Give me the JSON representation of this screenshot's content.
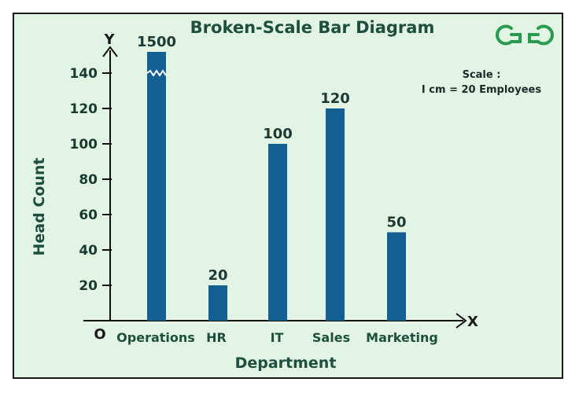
{
  "chart_data": {
    "type": "bar",
    "title": "Broken-Scale Bar Diagram",
    "xlabel": "Department",
    "ylabel": "Head Count",
    "categories": [
      "Operations",
      "HR",
      "IT",
      "Sales",
      "Marketing"
    ],
    "values": [
      1500,
      20,
      100,
      120,
      50
    ],
    "value_labels": [
      "1500",
      "20",
      "100",
      "120",
      "50"
    ],
    "yticks": [
      20,
      40,
      60,
      80,
      100,
      120,
      140
    ],
    "ylim": [
      0,
      150
    ],
    "broken_scale_bars": [
      "Operations"
    ],
    "bar_color": "#135f93",
    "origin_label": "O",
    "x_axis_letter": "X",
    "y_axis_letter": "Y",
    "scale_note": [
      "Scale :",
      "I cm = 20 Employees"
    ],
    "grid": false
  },
  "brand": {
    "logo_text": "GfG",
    "color": "#2a9a4e"
  }
}
